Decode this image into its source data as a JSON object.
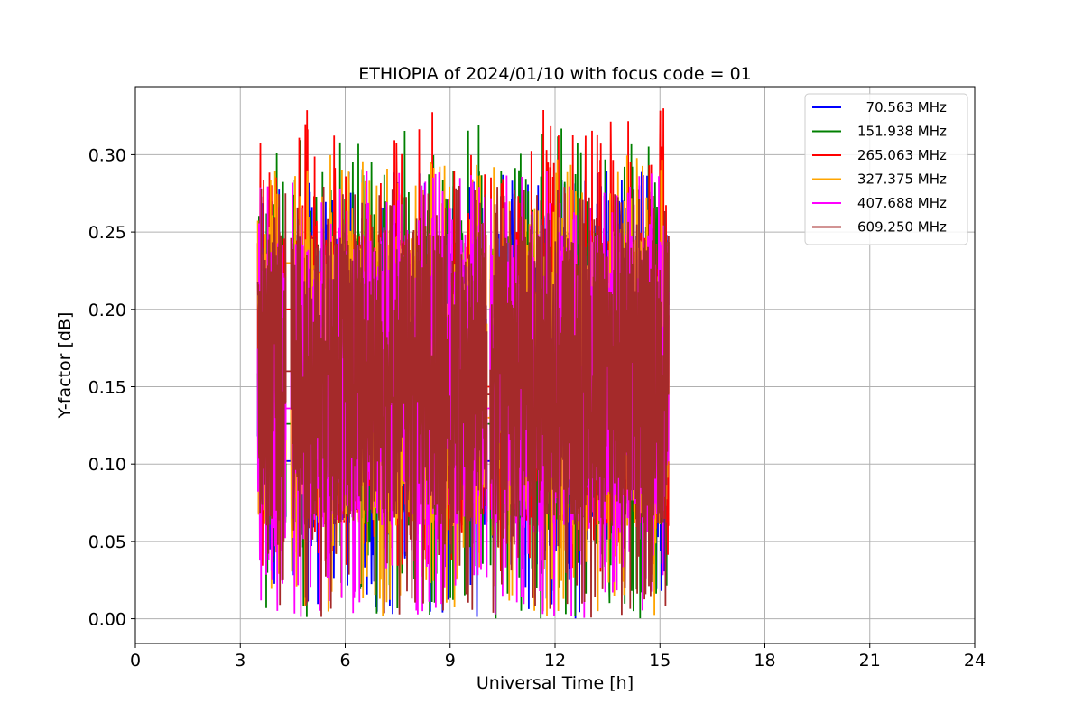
{
  "chart_data": {
    "type": "line",
    "title": "ETHIOPIA of 2024/01/10 with focus code = 01",
    "xlabel": "Universal Time [h]",
    "ylabel": "Y-factor [dB]",
    "xlim": [
      0,
      24
    ],
    "ylim": [
      -0.016,
      0.344
    ],
    "xticks": [
      0,
      3,
      6,
      9,
      12,
      15,
      18,
      21,
      24
    ],
    "xtick_labels": [
      "0",
      "3",
      "6",
      "9",
      "12",
      "15",
      "18",
      "21",
      "24"
    ],
    "yticks": [
      0.0,
      0.05,
      0.1,
      0.15,
      0.2,
      0.25,
      0.3
    ],
    "ytick_labels": [
      "0.00",
      "0.05",
      "0.10",
      "0.15",
      "0.20",
      "0.25",
      "0.30"
    ],
    "grid": true,
    "legend_position": "top-right",
    "observation_segments_h": [
      [
        3.5,
        4.3
      ],
      [
        4.45,
        10.05
      ],
      [
        10.15,
        15.25
      ]
    ],
    "series": [
      {
        "name": "  70.563 MHz",
        "color": "#0000ff",
        "y_min": 0.0,
        "y_max": 0.29,
        "gap_values": [
          0.102,
          0.102
        ]
      },
      {
        "name": "151.938 MHz",
        "color": "#008000",
        "y_min": 0.0,
        "y_max": 0.32,
        "gap_values": [
          0.126,
          0.126
        ]
      },
      {
        "name": "265.063 MHz",
        "color": "#ff0000",
        "y_min": 0.03,
        "y_max": 0.33,
        "gap_values": [
          0.2,
          0.15
        ]
      },
      {
        "name": "327.375 MHz",
        "color": "#ffa500",
        "y_min": 0.0,
        "y_max": 0.3,
        "gap_values": [
          0.23,
          0.13
        ]
      },
      {
        "name": "407.688 MHz",
        "color": "#ff00ff",
        "y_min": 0.0,
        "y_max": 0.29,
        "gap_values": [
          0.136,
          0.136
        ]
      },
      {
        "name": "609.250 MHz",
        "color": "#a52a2a",
        "y_min": 0.0,
        "y_max": 0.28,
        "gap_values": [
          0.16,
          0.145
        ]
      }
    ]
  }
}
